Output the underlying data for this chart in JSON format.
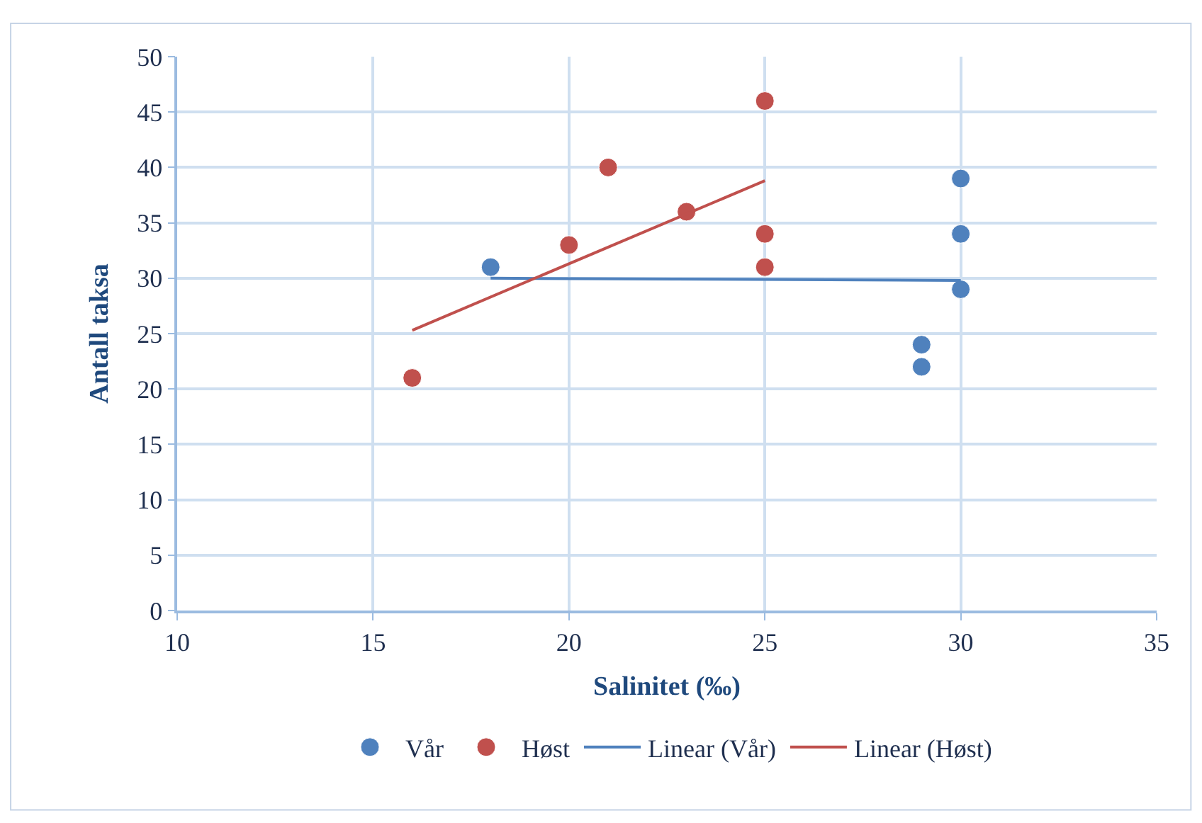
{
  "chart_data": {
    "type": "scatter",
    "xlabel": "Salinitet (‰)",
    "ylabel": "Antall taksa",
    "xlim": [
      10,
      35
    ],
    "xticks": [
      10,
      15,
      20,
      25,
      30,
      35
    ],
    "ylim": [
      0,
      50
    ],
    "yticks": [
      0,
      5,
      10,
      15,
      20,
      25,
      30,
      35,
      40,
      45,
      50
    ],
    "grid": true,
    "legend": "bottom",
    "series": [
      {
        "name": "Vår",
        "marker": "circle",
        "color": "#4f81bd",
        "x": [
          18,
          29,
          29,
          30,
          30,
          30
        ],
        "values": [
          31,
          24,
          22,
          39,
          34,
          29
        ]
      },
      {
        "name": "Høst",
        "marker": "circle",
        "color": "#c0504d",
        "x": [
          16,
          20,
          21,
          23,
          25,
          25,
          25
        ],
        "values": [
          21,
          33,
          40,
          36,
          46,
          34,
          31
        ]
      },
      {
        "name": "Linear (Vår)",
        "type": "line",
        "marker": "none",
        "color": "#4f81bd",
        "x": [
          18,
          30
        ],
        "values": [
          30,
          29.8
        ]
      },
      {
        "name": "Linear (Høst)",
        "type": "line",
        "marker": "none",
        "color": "#c0504d",
        "x": [
          16,
          25
        ],
        "values": [
          25.3,
          38.8
        ]
      }
    ]
  }
}
